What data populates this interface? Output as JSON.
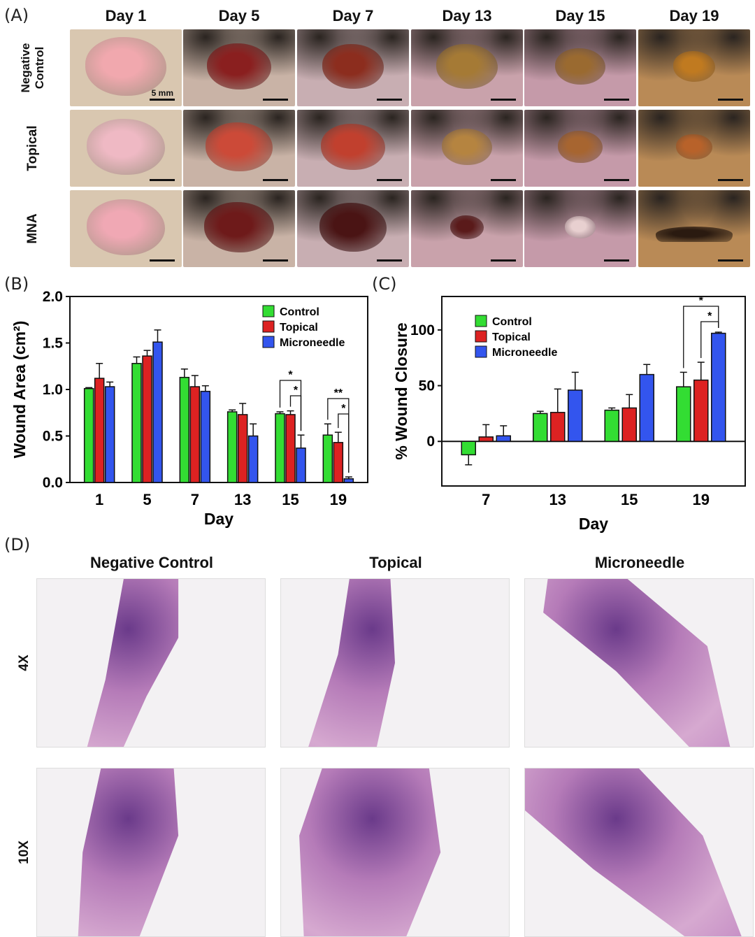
{
  "panel_labels": {
    "a": "(A)",
    "b": "(B)",
    "c": "(C)",
    "d": "(D)"
  },
  "panelA": {
    "days": [
      "Day 1",
      "Day 5",
      "Day 7",
      "Day 13",
      "Day 15",
      "Day 19"
    ],
    "rows": [
      "Negative Control",
      "Topical",
      "MNA"
    ],
    "scale_label": "5 mm"
  },
  "panelD": {
    "columns": [
      "Negative Control",
      "Topical",
      "Microneedle"
    ],
    "magnifications": [
      "4X",
      "10X"
    ]
  },
  "chart_data": [
    {
      "type": "bar",
      "panel": "B",
      "ylabel": "Wound Area (cm²)",
      "xlabel": "Day",
      "ylim": [
        0,
        2.0
      ],
      "yticks": [
        "0.0",
        "0.5",
        "1.0",
        "1.5",
        "2.0"
      ],
      "categories": [
        "1",
        "5",
        "7",
        "13",
        "15",
        "19"
      ],
      "series": [
        {
          "name": "Control",
          "color": "#33dd33",
          "values": [
            1.01,
            1.28,
            1.13,
            0.76,
            0.74,
            0.51
          ],
          "errors": [
            0.01,
            0.07,
            0.09,
            0.02,
            0.02,
            0.12
          ]
        },
        {
          "name": "Topical",
          "color": "#dd2222",
          "values": [
            1.12,
            1.36,
            1.03,
            0.73,
            0.73,
            0.43
          ],
          "errors": [
            0.16,
            0.06,
            0.12,
            0.12,
            0.04,
            0.11
          ]
        },
        {
          "name": "Microneedle",
          "color": "#3355ee",
          "values": [
            1.03,
            1.51,
            0.98,
            0.5,
            0.37,
            0.04
          ],
          "errors": [
            0.05,
            0.13,
            0.06,
            0.13,
            0.14,
            0.02
          ]
        }
      ],
      "legend": "top-right",
      "significance": [
        {
          "category": "15",
          "from": "Control",
          "to": "Microneedle",
          "label": "*"
        },
        {
          "category": "15",
          "from": "Topical",
          "to": "Microneedle",
          "label": "*"
        },
        {
          "category": "19",
          "from": "Control",
          "to": "Microneedle",
          "label": "**"
        },
        {
          "category": "19",
          "from": "Topical",
          "to": "Microneedle",
          "label": "*"
        }
      ]
    },
    {
      "type": "bar",
      "panel": "C",
      "ylabel": "% Wound Closure",
      "xlabel": "Day",
      "ylim": [
        -40,
        130
      ],
      "yticks": [
        "0",
        "50",
        "100"
      ],
      "categories": [
        "7",
        "13",
        "15",
        "19"
      ],
      "series": [
        {
          "name": "Control",
          "color": "#33dd33",
          "values": [
            -12,
            25,
            28,
            49
          ],
          "errors": [
            9,
            2,
            2,
            13
          ]
        },
        {
          "name": "Topical",
          "color": "#dd2222",
          "values": [
            4,
            26,
            30,
            55
          ],
          "errors": [
            11,
            21,
            12,
            16
          ]
        },
        {
          "name": "Microneedle",
          "color": "#3355ee",
          "values": [
            5,
            46,
            60,
            97
          ],
          "errors": [
            9,
            16,
            9,
            1
          ]
        }
      ],
      "legend": "top-left",
      "significance": [
        {
          "category": "19",
          "from": "Control",
          "to": "Microneedle",
          "label": "*"
        },
        {
          "category": "19",
          "from": "Topical",
          "to": "Microneedle",
          "label": "*"
        }
      ]
    }
  ]
}
